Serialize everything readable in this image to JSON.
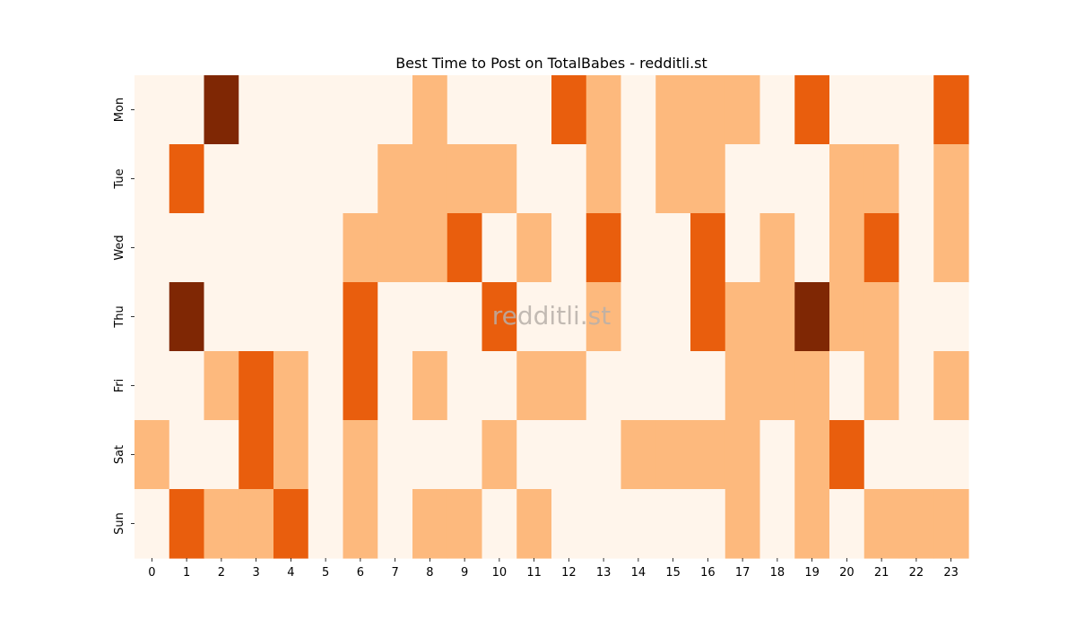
{
  "chart_data": {
    "type": "heatmap",
    "title": "Best Time to Post on TotalBabes - redditli.st",
    "watermark": "redditli.st",
    "xlabel": "",
    "ylabel": "",
    "x": [
      "0",
      "1",
      "2",
      "3",
      "4",
      "5",
      "6",
      "7",
      "8",
      "9",
      "10",
      "11",
      "12",
      "13",
      "14",
      "15",
      "16",
      "17",
      "18",
      "19",
      "20",
      "21",
      "22",
      "23"
    ],
    "y": [
      "Mon",
      "Tue",
      "Wed",
      "Thu",
      "Fri",
      "Sat",
      "Sun"
    ],
    "values": [
      [
        0,
        0,
        3,
        0,
        0,
        0,
        0,
        0,
        1,
        0,
        0,
        0,
        2,
        1,
        0,
        1,
        1,
        1,
        0,
        2,
        0,
        0,
        0,
        2
      ],
      [
        0,
        2,
        0,
        0,
        0,
        0,
        0,
        1,
        1,
        1,
        1,
        0,
        0,
        1,
        0,
        1,
        1,
        0,
        0,
        0,
        1,
        1,
        0,
        1
      ],
      [
        0,
        0,
        0,
        0,
        0,
        0,
        1,
        1,
        1,
        2,
        0,
        1,
        0,
        2,
        0,
        0,
        2,
        0,
        1,
        0,
        1,
        2,
        0,
        1
      ],
      [
        0,
        3,
        0,
        0,
        0,
        0,
        2,
        0,
        0,
        0,
        2,
        0,
        0,
        1,
        0,
        0,
        2,
        1,
        1,
        3,
        1,
        1,
        0,
        0
      ],
      [
        0,
        0,
        1,
        2,
        1,
        0,
        2,
        0,
        1,
        0,
        0,
        1,
        1,
        0,
        0,
        0,
        0,
        1,
        1,
        1,
        0,
        1,
        0,
        1
      ],
      [
        1,
        0,
        0,
        2,
        1,
        0,
        1,
        0,
        0,
        0,
        1,
        0,
        0,
        0,
        1,
        1,
        1,
        1,
        0,
        1,
        2,
        0,
        0,
        0
      ],
      [
        0,
        2,
        1,
        1,
        2,
        0,
        1,
        0,
        1,
        1,
        0,
        1,
        0,
        0,
        0,
        0,
        0,
        1,
        0,
        1,
        0,
        1,
        1,
        1
      ]
    ],
    "colors": [
      "#fff5eb",
      "#fdb97d",
      "#e95e0d",
      "#7f2704"
    ],
    "colormap": "Oranges"
  }
}
